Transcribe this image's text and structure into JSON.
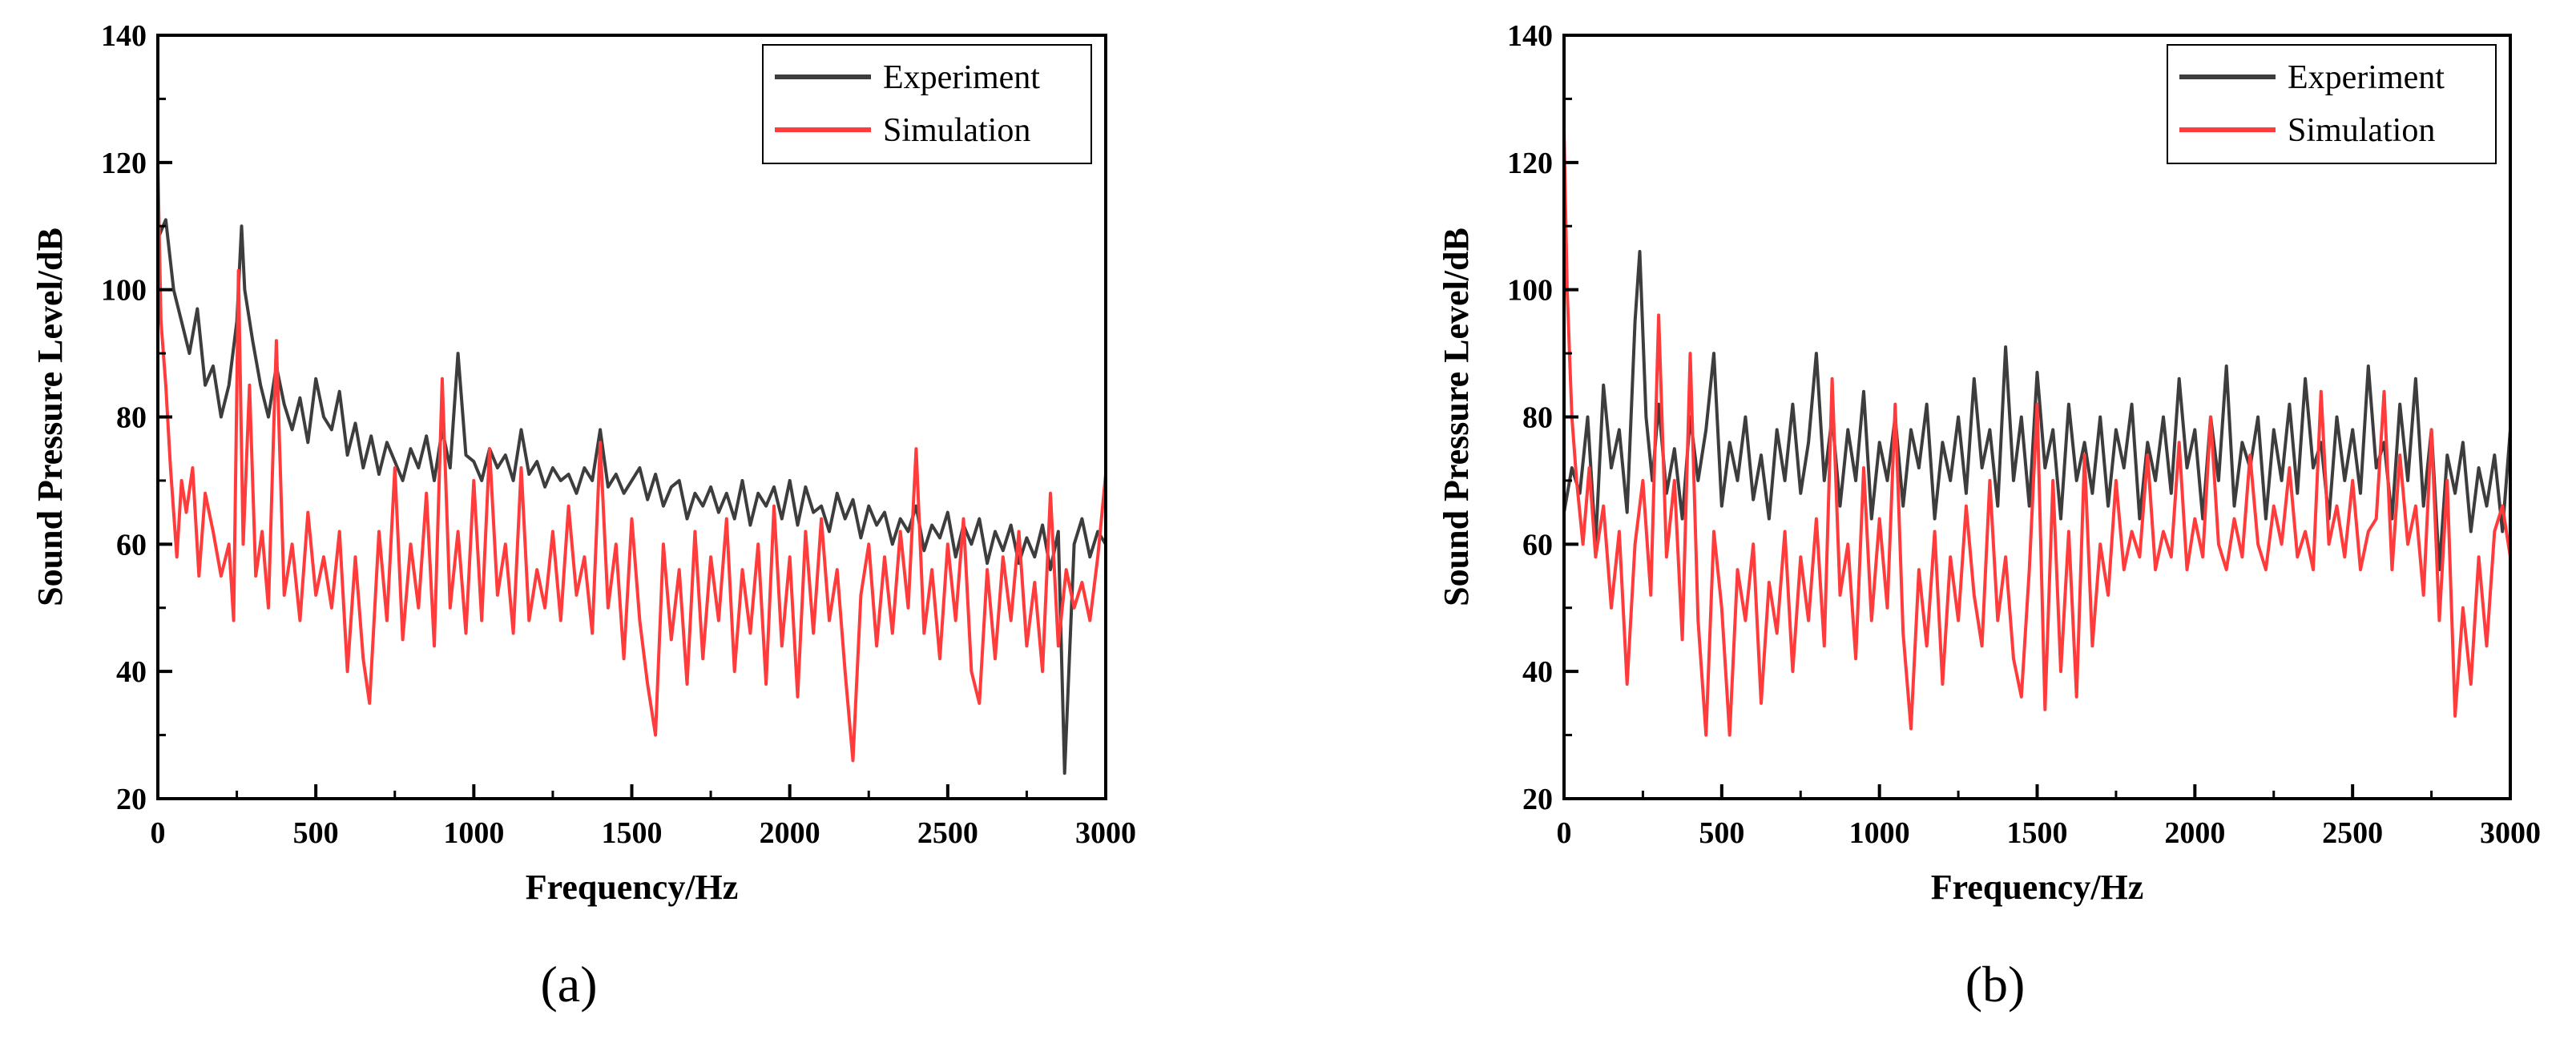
{
  "chart_data": [
    {
      "type": "line",
      "panel_label": "(a)",
      "xlabel": "Frequency/Hz",
      "ylabel": "Sound Pressure Level/dB",
      "xlim": [
        0,
        3000
      ],
      "ylim": [
        20,
        140
      ],
      "xticks": [
        0,
        500,
        1000,
        1500,
        2000,
        2500,
        3000
      ],
      "yticks": [
        20,
        40,
        60,
        80,
        100,
        120,
        140
      ],
      "legend": {
        "position": "top-right"
      },
      "series": [
        {
          "name": "Experiment",
          "color": "#3d3d3d",
          "x": [
            0,
            25,
            50,
            75,
            100,
            125,
            150,
            175,
            200,
            225,
            250,
            265,
            275,
            300,
            325,
            350,
            375,
            400,
            425,
            450,
            475,
            500,
            525,
            550,
            575,
            600,
            625,
            650,
            675,
            700,
            725,
            750,
            775,
            800,
            825,
            850,
            875,
            900,
            925,
            950,
            975,
            1000,
            1025,
            1050,
            1075,
            1100,
            1125,
            1150,
            1175,
            1200,
            1225,
            1250,
            1275,
            1300,
            1325,
            1350,
            1375,
            1400,
            1425,
            1450,
            1475,
            1500,
            1525,
            1550,
            1575,
            1600,
            1625,
            1650,
            1675,
            1700,
            1725,
            1750,
            1775,
            1800,
            1825,
            1850,
            1875,
            1900,
            1925,
            1950,
            1975,
            2000,
            2025,
            2050,
            2075,
            2100,
            2125,
            2150,
            2175,
            2200,
            2225,
            2250,
            2275,
            2300,
            2325,
            2350,
            2375,
            2400,
            2425,
            2450,
            2475,
            2500,
            2525,
            2550,
            2575,
            2600,
            2625,
            2650,
            2675,
            2700,
            2725,
            2750,
            2775,
            2800,
            2825,
            2850,
            2870,
            2900,
            2925,
            2950,
            2975,
            3000
          ],
          "y": [
            108,
            111,
            100,
            95,
            90,
            97,
            85,
            88,
            80,
            85,
            95,
            110,
            100,
            92,
            85,
            80,
            88,
            82,
            78,
            83,
            76,
            86,
            80,
            78,
            84,
            74,
            79,
            72,
            77,
            71,
            76,
            73,
            70,
            75,
            72,
            77,
            70,
            78,
            72,
            90,
            74,
            73,
            70,
            75,
            72,
            74,
            70,
            78,
            71,
            73,
            69,
            72,
            70,
            71,
            68,
            72,
            70,
            78,
            69,
            71,
            68,
            70,
            72,
            67,
            71,
            66,
            69,
            70,
            64,
            68,
            66,
            69,
            65,
            68,
            64,
            70,
            63,
            68,
            66,
            69,
            64,
            70,
            63,
            69,
            65,
            66,
            62,
            68,
            64,
            67,
            61,
            66,
            63,
            65,
            60,
            64,
            62,
            66,
            59,
            63,
            61,
            65,
            58,
            63,
            60,
            64,
            57,
            62,
            59,
            63,
            57,
            61,
            58,
            63,
            56,
            62,
            24,
            60,
            64,
            58,
            62,
            60
          ]
        },
        {
          "name": "Simulation",
          "color": "#ff3b3b",
          "x": [
            0,
            10,
            25,
            40,
            60,
            75,
            90,
            110,
            130,
            150,
            175,
            200,
            225,
            240,
            255,
            270,
            290,
            310,
            330,
            350,
            375,
            400,
            425,
            450,
            475,
            500,
            525,
            550,
            575,
            600,
            625,
            650,
            670,
            700,
            725,
            750,
            775,
            800,
            825,
            850,
            875,
            900,
            925,
            950,
            975,
            1000,
            1025,
            1050,
            1075,
            1100,
            1125,
            1150,
            1175,
            1200,
            1225,
            1250,
            1275,
            1300,
            1325,
            1350,
            1375,
            1400,
            1425,
            1450,
            1475,
            1500,
            1525,
            1550,
            1575,
            1600,
            1625,
            1650,
            1675,
            1700,
            1725,
            1750,
            1775,
            1800,
            1825,
            1850,
            1875,
            1900,
            1925,
            1950,
            1975,
            2000,
            2025,
            2050,
            2075,
            2100,
            2125,
            2150,
            2175,
            2200,
            2225,
            2250,
            2275,
            2300,
            2325,
            2350,
            2375,
            2400,
            2425,
            2450,
            2475,
            2500,
            2525,
            2550,
            2575,
            2600,
            2625,
            2650,
            2675,
            2700,
            2725,
            2750,
            2775,
            2800,
            2825,
            2850,
            2875,
            2900,
            2925,
            2950,
            2975,
            3000
          ],
          "y": [
            120,
            95,
            85,
            72,
            58,
            70,
            65,
            72,
            55,
            68,
            62,
            55,
            60,
            48,
            103,
            60,
            85,
            55,
            62,
            50,
            92,
            52,
            60,
            48,
            65,
            52,
            58,
            50,
            62,
            40,
            58,
            42,
            35,
            62,
            48,
            72,
            45,
            60,
            50,
            68,
            44,
            86,
            50,
            62,
            46,
            70,
            48,
            75,
            52,
            60,
            46,
            72,
            48,
            56,
            50,
            62,
            48,
            66,
            52,
            58,
            46,
            76,
            50,
            60,
            42,
            64,
            48,
            38,
            30,
            60,
            45,
            56,
            38,
            62,
            42,
            58,
            48,
            64,
            40,
            56,
            46,
            60,
            38,
            66,
            44,
            58,
            36,
            62,
            46,
            64,
            48,
            56,
            40,
            26,
            52,
            60,
            44,
            58,
            46,
            62,
            50,
            75,
            46,
            56,
            42,
            60,
            48,
            64,
            40,
            35,
            56,
            42,
            58,
            48,
            62,
            44,
            54,
            40,
            68,
            44,
            56,
            50,
            54,
            48,
            58,
            71
          ]
        }
      ]
    },
    {
      "type": "line",
      "panel_label": "(b)",
      "xlabel": "Frequency/Hz",
      "ylabel": "Sound Pressure Level/dB",
      "xlim": [
        0,
        3000
      ],
      "ylim": [
        20,
        140
      ],
      "xticks": [
        0,
        500,
        1000,
        1500,
        2000,
        2500,
        3000
      ],
      "yticks": [
        20,
        40,
        60,
        80,
        100,
        120,
        140
      ],
      "legend": {
        "position": "top-right"
      },
      "series": [
        {
          "name": "Experiment",
          "color": "#3d3d3d",
          "x": [
            0,
            25,
            50,
            75,
            100,
            125,
            150,
            175,
            200,
            225,
            240,
            260,
            280,
            300,
            325,
            350,
            375,
            400,
            425,
            450,
            475,
            500,
            525,
            550,
            575,
            600,
            625,
            650,
            675,
            700,
            725,
            750,
            775,
            800,
            825,
            850,
            875,
            900,
            925,
            950,
            975,
            1000,
            1025,
            1050,
            1075,
            1100,
            1125,
            1150,
            1175,
            1200,
            1225,
            1250,
            1275,
            1300,
            1325,
            1350,
            1375,
            1400,
            1425,
            1450,
            1475,
            1500,
            1525,
            1550,
            1575,
            1600,
            1625,
            1650,
            1675,
            1700,
            1725,
            1750,
            1775,
            1800,
            1825,
            1850,
            1875,
            1900,
            1925,
            1950,
            1975,
            2000,
            2025,
            2050,
            2075,
            2100,
            2125,
            2150,
            2175,
            2200,
            2225,
            2250,
            2275,
            2300,
            2325,
            2350,
            2375,
            2400,
            2425,
            2450,
            2475,
            2500,
            2525,
            2550,
            2575,
            2600,
            2625,
            2650,
            2675,
            2700,
            2725,
            2750,
            2775,
            2800,
            2825,
            2850,
            2875,
            2900,
            2925,
            2950,
            2975,
            3000
          ],
          "y": [
            65,
            72,
            68,
            80,
            60,
            85,
            72,
            78,
            65,
            95,
            106,
            80,
            70,
            82,
            68,
            75,
            64,
            80,
            70,
            78,
            90,
            66,
            76,
            70,
            80,
            67,
            74,
            64,
            78,
            70,
            82,
            68,
            76,
            90,
            70,
            80,
            66,
            78,
            70,
            84,
            64,
            76,
            70,
            80,
            66,
            78,
            72,
            82,
            64,
            76,
            70,
            80,
            68,
            86,
            72,
            78,
            66,
            91,
            70,
            80,
            66,
            87,
            72,
            78,
            64,
            82,
            70,
            76,
            68,
            80,
            66,
            78,
            72,
            82,
            64,
            76,
            70,
            80,
            68,
            86,
            72,
            78,
            64,
            80,
            70,
            88,
            66,
            76,
            72,
            80,
            64,
            78,
            70,
            82,
            68,
            86,
            72,
            76,
            64,
            80,
            70,
            78,
            68,
            88,
            72,
            76,
            64,
            82,
            70,
            86,
            66,
            78,
            56,
            74,
            68,
            76,
            62,
            72,
            66,
            74,
            62,
            78
          ]
        },
        {
          "name": "Simulation",
          "color": "#ff3b3b",
          "x": [
            0,
            10,
            25,
            40,
            60,
            80,
            100,
            125,
            150,
            175,
            200,
            225,
            250,
            275,
            300,
            325,
            350,
            375,
            400,
            425,
            450,
            475,
            500,
            525,
            550,
            575,
            600,
            625,
            650,
            675,
            700,
            725,
            750,
            775,
            800,
            825,
            850,
            875,
            900,
            925,
            950,
            975,
            1000,
            1025,
            1050,
            1075,
            1100,
            1125,
            1150,
            1175,
            1200,
            1225,
            1250,
            1275,
            1300,
            1325,
            1350,
            1375,
            1400,
            1425,
            1450,
            1475,
            1500,
            1525,
            1550,
            1575,
            1600,
            1625,
            1650,
            1675,
            1700,
            1725,
            1750,
            1775,
            1800,
            1825,
            1850,
            1875,
            1900,
            1925,
            1950,
            1975,
            2000,
            2025,
            2050,
            2075,
            2100,
            2125,
            2150,
            2175,
            2200,
            2225,
            2250,
            2275,
            2300,
            2325,
            2350,
            2375,
            2400,
            2425,
            2450,
            2475,
            2500,
            2525,
            2550,
            2575,
            2600,
            2625,
            2650,
            2675,
            2700,
            2725,
            2750,
            2775,
            2800,
            2825,
            2850,
            2875,
            2900,
            2925,
            2950,
            2975,
            3000
          ],
          "y": [
            125,
            100,
            80,
            70,
            60,
            72,
            58,
            66,
            50,
            62,
            38,
            60,
            70,
            52,
            96,
            58,
            70,
            45,
            90,
            48,
            30,
            62,
            50,
            30,
            56,
            48,
            60,
            35,
            54,
            46,
            62,
            40,
            58,
            48,
            64,
            44,
            86,
            52,
            60,
            42,
            72,
            48,
            64,
            50,
            82,
            46,
            31,
            56,
            44,
            62,
            38,
            58,
            48,
            66,
            52,
            44,
            70,
            48,
            58,
            42,
            36,
            56,
            82,
            34,
            70,
            40,
            62,
            36,
            74,
            44,
            60,
            52,
            70,
            56,
            62,
            58,
            74,
            56,
            62,
            58,
            76,
            56,
            64,
            58,
            80,
            60,
            56,
            64,
            58,
            74,
            60,
            56,
            66,
            60,
            72,
            58,
            62,
            56,
            84,
            60,
            66,
            58,
            70,
            56,
            62,
            64,
            84,
            56,
            74,
            60,
            66,
            52,
            78,
            48,
            70,
            33,
            50,
            38,
            58,
            44,
            62,
            66,
            58
          ]
        }
      ]
    }
  ]
}
